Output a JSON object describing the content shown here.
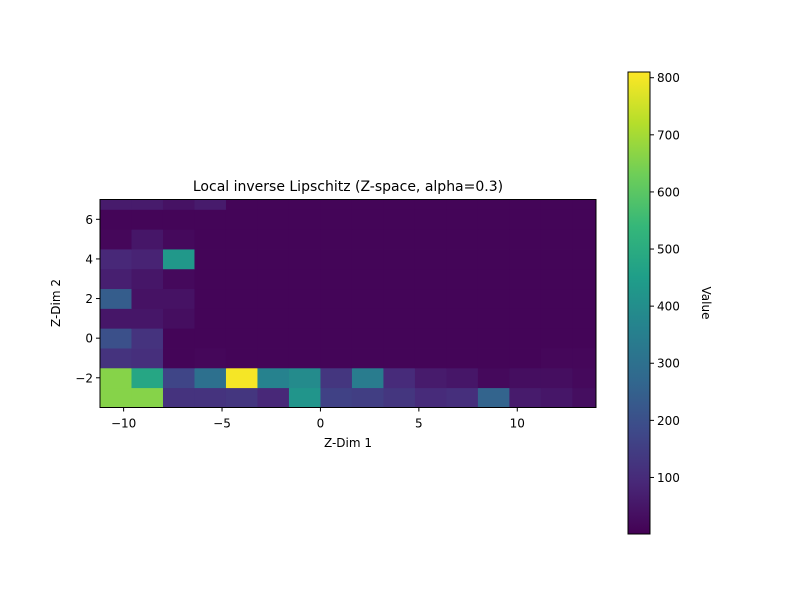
{
  "chart_data": {
    "type": "heatmap",
    "title": "Local inverse Lipschitz (Z-space, alpha=0.3)",
    "xlabel": "Z-Dim 1",
    "ylabel": "Z-Dim 2",
    "xlim": [
      -11.2,
      14
    ],
    "ylim": [
      -3.5,
      7
    ],
    "x_edges": [
      -11.2,
      -9.6,
      -8.0,
      -6.4,
      -4.8,
      -3.2,
      -1.6,
      0.0,
      1.6,
      3.2,
      4.8,
      6.4,
      8.0,
      9.6,
      11.2,
      12.8,
      14.0
    ],
    "y_edges": [
      -3.5,
      -2.5,
      -1.5,
      -0.5,
      0.5,
      1.5,
      2.5,
      3.5,
      4.5,
      5.5,
      6.5,
      7.0
    ],
    "x_ticks": [
      -10,
      -5,
      0,
      5,
      10
    ],
    "x_tick_labels": [
      "−10",
      "−5",
      "0",
      "5",
      "10"
    ],
    "y_ticks": [
      -2,
      0,
      2,
      4,
      6
    ],
    "y_tick_labels": [
      "−2",
      "0",
      "2",
      "4",
      "6"
    ],
    "z": [
      [
        660,
        660,
        120,
        120,
        130,
        90,
        420,
        160,
        150,
        130,
        100,
        110,
        260,
        60,
        50,
        30
      ],
      [
        660,
        480,
        170,
        300,
        800,
        360,
        390,
        130,
        340,
        100,
        60,
        50,
        20,
        30,
        30,
        20
      ],
      [
        120,
        110,
        10,
        15,
        10,
        10,
        10,
        10,
        10,
        10,
        10,
        10,
        10,
        10,
        15,
        15
      ],
      [
        200,
        120,
        10,
        10,
        10,
        10,
        10,
        10,
        10,
        10,
        10,
        10,
        10,
        10,
        10,
        10
      ],
      [
        50,
        50,
        30,
        10,
        10,
        10,
        10,
        10,
        10,
        10,
        10,
        10,
        10,
        10,
        10,
        10
      ],
      [
        240,
        40,
        40,
        10,
        10,
        10,
        10,
        10,
        10,
        10,
        10,
        10,
        10,
        10,
        10,
        10
      ],
      [
        70,
        50,
        20,
        10,
        10,
        10,
        10,
        10,
        10,
        10,
        10,
        10,
        10,
        10,
        10,
        10
      ],
      [
        90,
        80,
        430,
        10,
        10,
        10,
        10,
        10,
        10,
        10,
        10,
        10,
        10,
        10,
        10,
        10
      ],
      [
        15,
        50,
        20,
        10,
        10,
        10,
        10,
        10,
        10,
        10,
        10,
        10,
        10,
        10,
        10,
        10
      ],
      [
        10,
        10,
        10,
        10,
        10,
        10,
        10,
        10,
        10,
        10,
        10,
        10,
        10,
        10,
        10,
        10
      ],
      [
        60,
        60,
        40,
        60,
        10,
        10,
        10,
        10,
        10,
        10,
        10,
        10,
        10,
        10,
        10,
        10
      ]
    ],
    "colorbar": {
      "label": "Value",
      "min": 1,
      "max": 810,
      "ticks": [
        100,
        200,
        300,
        400,
        500,
        600,
        700,
        800
      ],
      "colormap": "viridis"
    },
    "colormap_stops": [
      "#440154",
      "#482878",
      "#3e4989",
      "#31688e",
      "#26828e",
      "#1f9e89",
      "#35b779",
      "#6ece58",
      "#b5de2b",
      "#fde725"
    ]
  }
}
